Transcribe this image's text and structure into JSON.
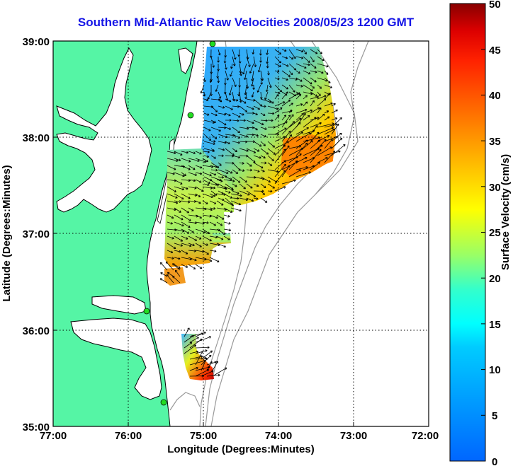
{
  "title": "Southern Mid-Atlantic Raw Velocities 2008/05/23 1200 GMT",
  "x_axis": {
    "label": "Longitude (Degrees:Minutes)",
    "ticks": [
      "77:00",
      "76:00",
      "75:00",
      "74:00",
      "73:00",
      "72:00"
    ]
  },
  "y_axis": {
    "label": "Latitude (Degrees:Minutes)",
    "ticks": [
      "39:00",
      "38:00",
      "37:00",
      "36:00",
      "35:00"
    ]
  },
  "colorbar": {
    "label": "Surface Velocity (cm/s)",
    "ticks": [
      "50",
      "45",
      "40",
      "35",
      "30",
      "25",
      "20",
      "15",
      "10",
      "5",
      "0"
    ],
    "range": [
      0,
      50
    ],
    "colormap": "jet"
  },
  "colors": {
    "title": "#1414e6",
    "land": "#55f5a5",
    "coastline": "#000000",
    "bathymetry": "#999999",
    "stations": "#22dd22"
  },
  "chart_data": {
    "type": "heatmap",
    "description_units": "surface current speed cm/s",
    "lon_range": [
      -77,
      -72
    ],
    "lat_range": [
      35,
      39
    ],
    "grid": true,
    "stations": [
      {
        "lon": -74.88,
        "lat": 38.97
      },
      {
        "lon": -75.15,
        "lat": 38.22
      },
      {
        "lon": -75.73,
        "lat": 36.18
      },
      {
        "lon": -75.5,
        "lat": 35.26
      }
    ],
    "regions": [
      {
        "name": "northern-field",
        "lon_range": [
          -75.0,
          -73.15
        ],
        "lat_range": [
          37.1,
          38.95
        ],
        "speed_cm_s": [
          5,
          38
        ]
      },
      {
        "name": "central-field",
        "lon_range": [
          -75.5,
          -74.7
        ],
        "lat_range": [
          36.55,
          37.9
        ],
        "speed_cm_s": [
          10,
          30
        ]
      },
      {
        "name": "southern-patch",
        "lon_range": [
          -75.25,
          -74.85
        ],
        "lat_range": [
          35.45,
          35.95
        ],
        "speed_cm_s": [
          15,
          48
        ]
      }
    ]
  }
}
